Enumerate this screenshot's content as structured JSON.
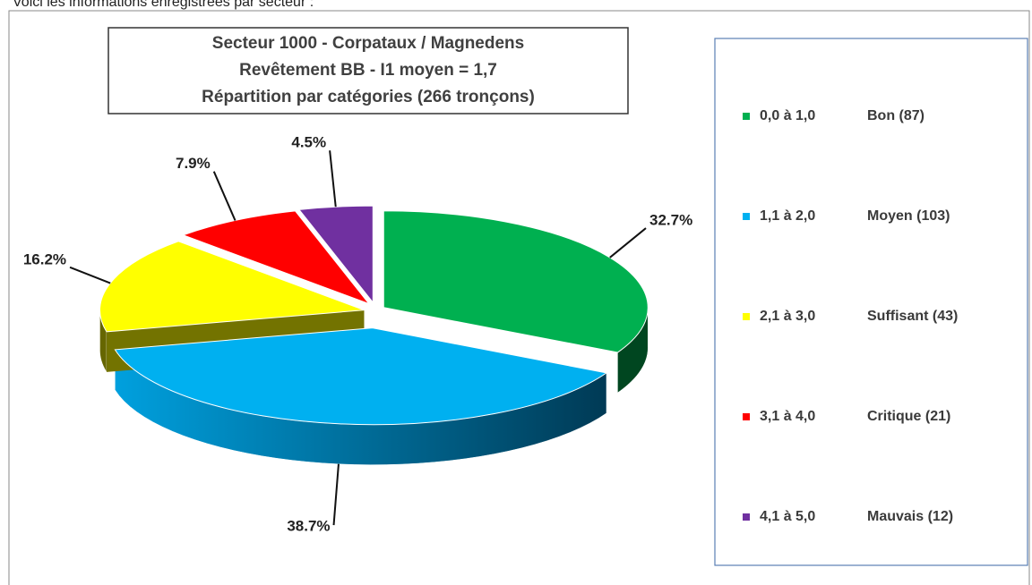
{
  "caption": "Voici les informations enregistrées par secteur :",
  "chart_data": {
    "type": "pie",
    "title_lines": [
      "Secteur 1000 - Corpataux / Magnedens",
      "Revêtement BB - I1 moyen = 1,7",
      "Répartition par catégories (266 tronçons)"
    ],
    "ranges": [
      "0,0 à 1,0",
      "1,1 à 2,0",
      "2,1 à 3,0",
      "3,1 à 4,0",
      "4,1 à 5,0"
    ],
    "categories": [
      "Bon (87)",
      "Moyen (103)",
      "Suffisant (43)",
      "Critique (21)",
      "Mauvais (12)"
    ],
    "values": [
      32.7,
      38.7,
      16.2,
      7.9,
      4.5
    ],
    "value_labels": [
      "32.7%",
      "38.7%",
      "16.2%",
      "7.9%",
      "4.5%"
    ],
    "colors": [
      "#00b050",
      "#00b0f0",
      "#ffff00",
      "#ff0000",
      "#7030a0"
    ],
    "legend": "right"
  }
}
